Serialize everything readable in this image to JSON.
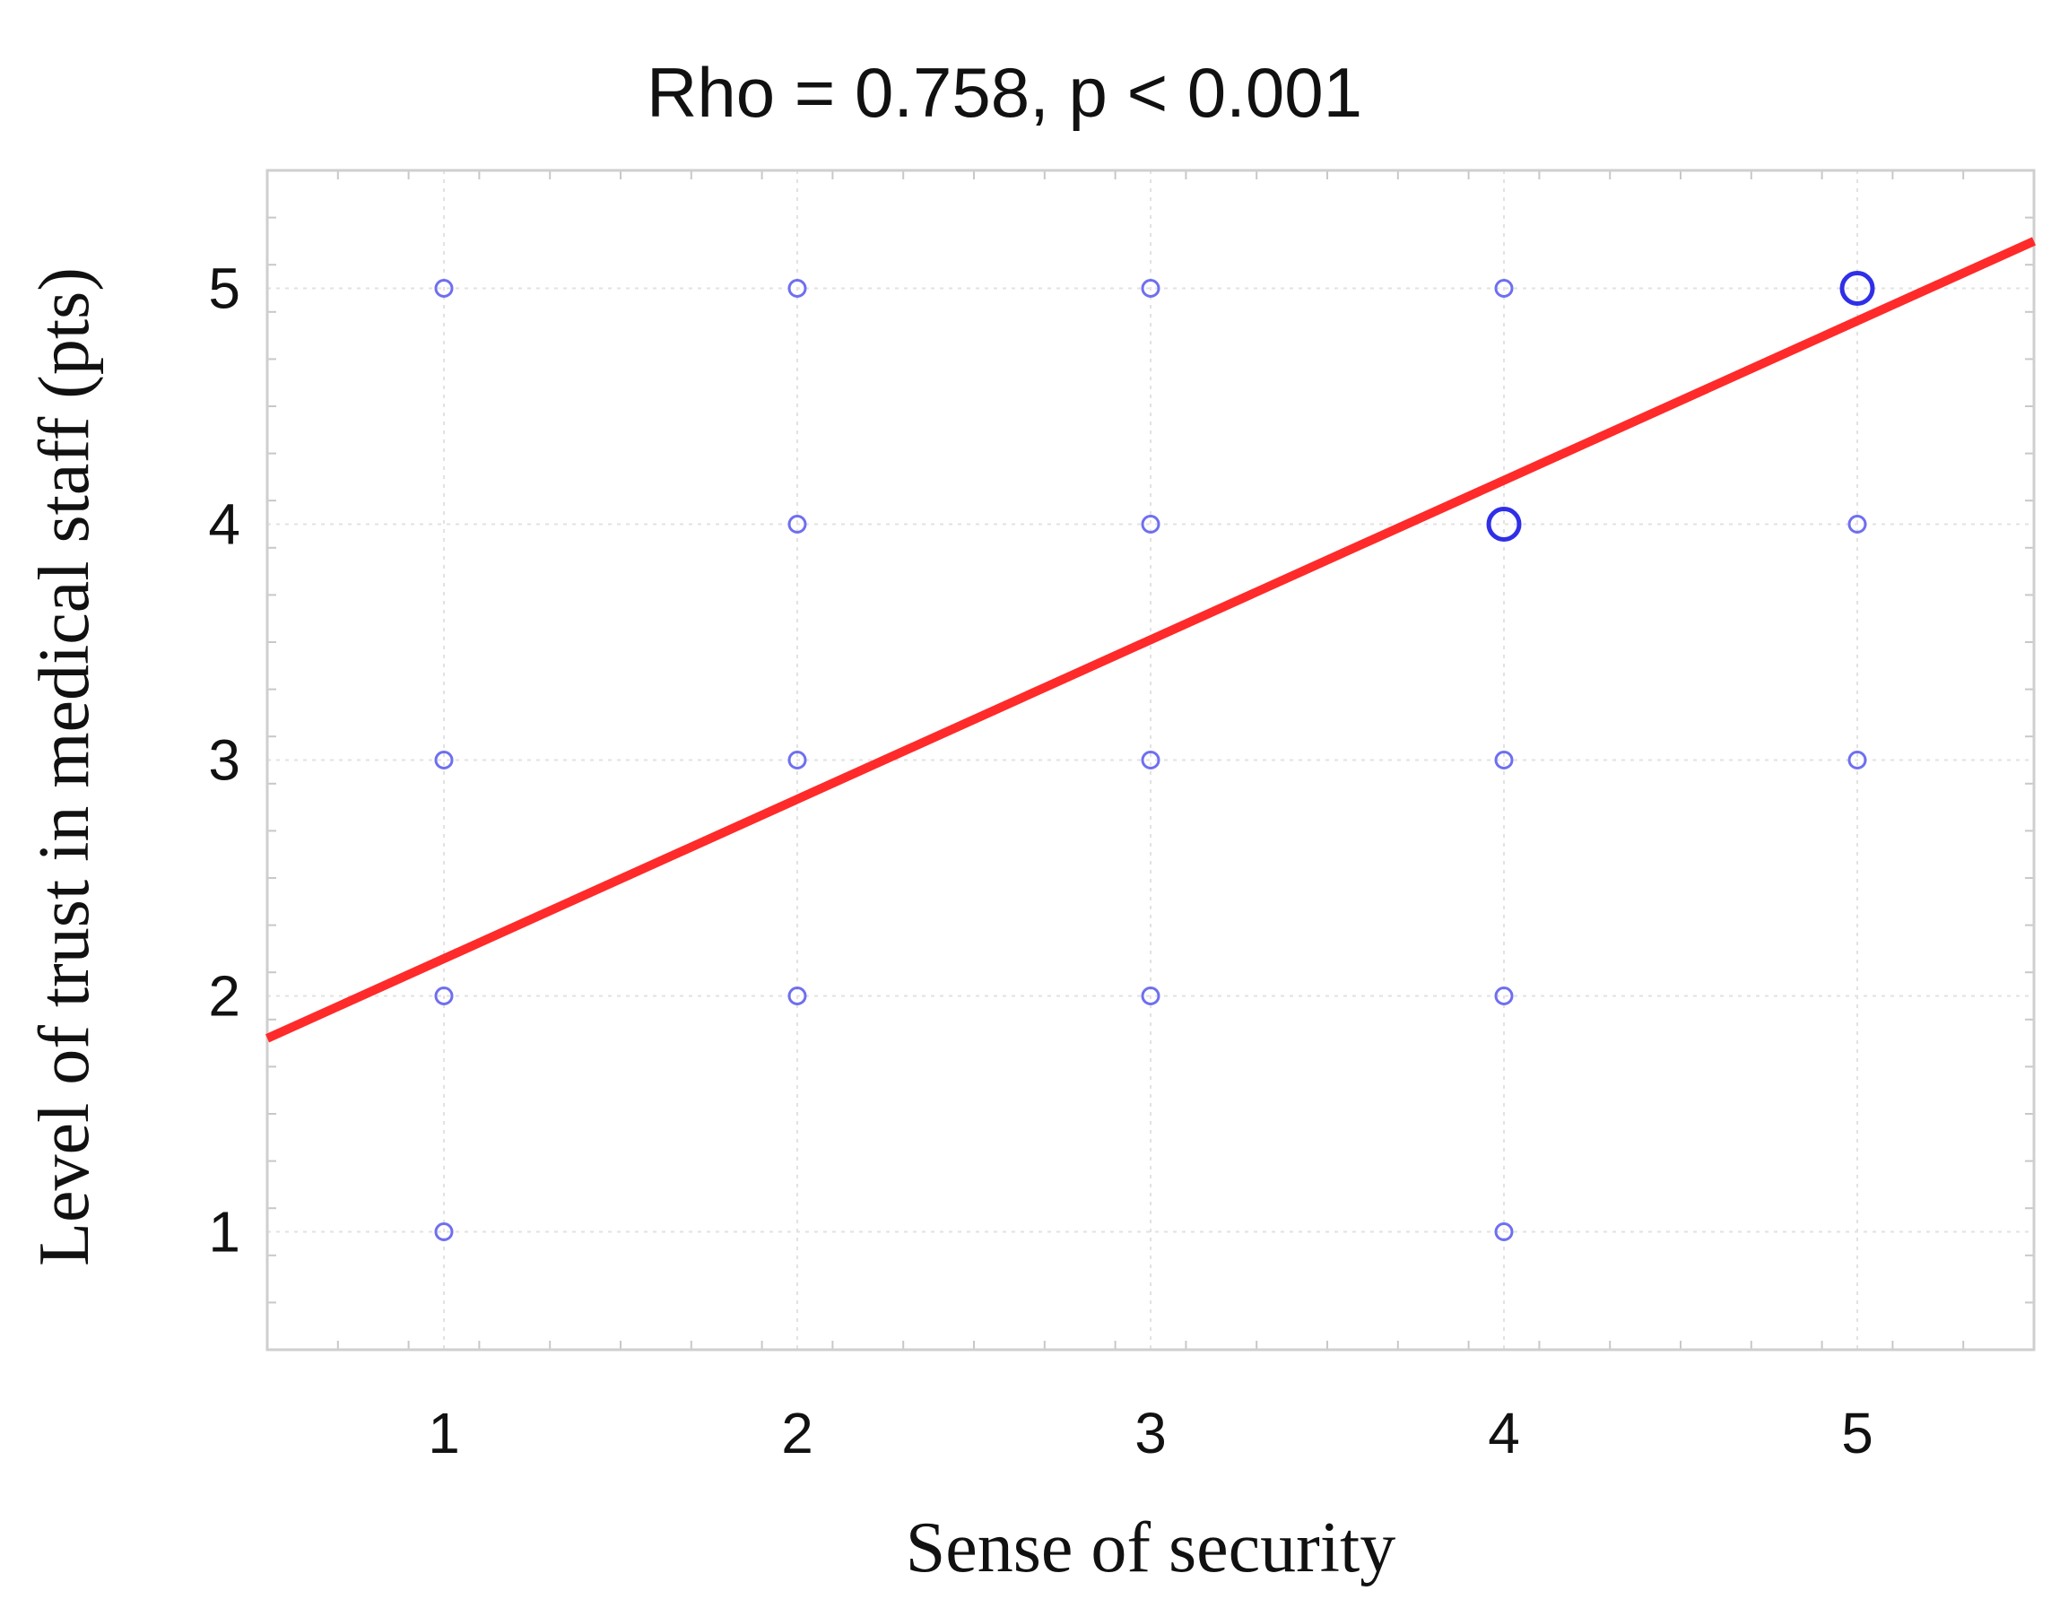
{
  "chart_data": {
    "type": "scatter",
    "title": "Rho = 0.758,   p < 0.001",
    "xlabel": "Sense of security",
    "ylabel": "Level of trust in medical staff (pts)",
    "xlim": [
      0.5,
      5.5
    ],
    "ylim": [
      0.5,
      5.5
    ],
    "xticks": [
      1,
      2,
      3,
      4,
      5
    ],
    "yticks": [
      1,
      2,
      3,
      4,
      5
    ],
    "grid": true,
    "colors": {
      "points": "#6f6ff0",
      "points_large": "#2f2fe8",
      "fit_line": "#ff2a2a"
    },
    "points": [
      {
        "x": 1,
        "y": 5,
        "size": "small"
      },
      {
        "x": 2,
        "y": 5,
        "size": "small"
      },
      {
        "x": 3,
        "y": 5,
        "size": "small"
      },
      {
        "x": 4,
        "y": 5,
        "size": "small"
      },
      {
        "x": 5,
        "y": 5,
        "size": "large"
      },
      {
        "x": 2,
        "y": 4,
        "size": "small"
      },
      {
        "x": 3,
        "y": 4,
        "size": "small"
      },
      {
        "x": 4,
        "y": 4,
        "size": "large"
      },
      {
        "x": 5,
        "y": 4,
        "size": "small"
      },
      {
        "x": 1,
        "y": 3,
        "size": "small"
      },
      {
        "x": 2,
        "y": 3,
        "size": "small"
      },
      {
        "x": 3,
        "y": 3,
        "size": "small"
      },
      {
        "x": 4,
        "y": 3,
        "size": "small"
      },
      {
        "x": 5,
        "y": 3,
        "size": "small"
      },
      {
        "x": 1,
        "y": 2,
        "size": "small"
      },
      {
        "x": 2,
        "y": 2,
        "size": "small"
      },
      {
        "x": 3,
        "y": 2,
        "size": "small"
      },
      {
        "x": 4,
        "y": 2,
        "size": "small"
      },
      {
        "x": 1,
        "y": 1,
        "size": "small"
      },
      {
        "x": 4,
        "y": 1,
        "size": "small"
      }
    ],
    "fit_line": {
      "x": [
        0.5,
        5.5
      ],
      "y": [
        1.82,
        5.2
      ]
    }
  }
}
